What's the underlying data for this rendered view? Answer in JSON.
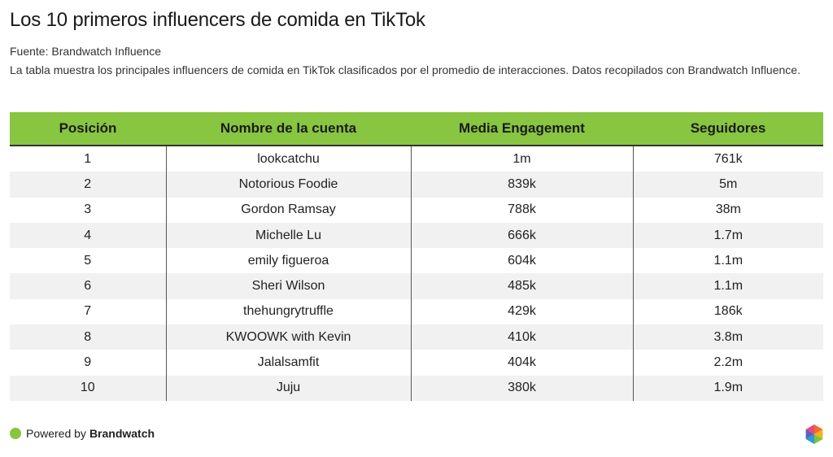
{
  "title": "Los 10 primeros influencers de comida en TikTok",
  "source": "Fuente: Brandwatch Influence",
  "description": "La tabla muestra los principales influencers de comida en TikTok clasificados por el promedio de interacciones. Datos recopilados con Brandwatch Influence.",
  "colors": {
    "header_bg": "#88c540",
    "stripe": "#f1f1f1",
    "accent": "#88c540"
  },
  "chart_data": {
    "type": "table",
    "title": "Los 10 primeros influencers de comida en TikTok",
    "columns": [
      "Posición",
      "Nombre de la cuenta",
      "Media Engagement",
      "Seguidores"
    ],
    "rows": [
      [
        "1",
        "lookcatchu",
        "1m",
        "761k"
      ],
      [
        "2",
        "Notorious Foodie",
        "839k",
        "5m"
      ],
      [
        "3",
        "Gordon Ramsay",
        "788k",
        "38m"
      ],
      [
        "4",
        "Michelle Lu",
        "666k",
        "1.7m"
      ],
      [
        "5",
        "emily figueroa",
        "604k",
        "1.1m"
      ],
      [
        "6",
        "Sheri Wilson",
        "485k",
        "1.1m"
      ],
      [
        "7",
        "thehungrytruffle",
        "429k",
        "186k"
      ],
      [
        "8",
        "KWOOWK with Kevin",
        "410k",
        "3.8m"
      ],
      [
        "9",
        "Jalalsamfit",
        "404k",
        "2.2m"
      ],
      [
        "10",
        "Juju",
        "380k",
        "1.9m"
      ]
    ]
  },
  "footer": {
    "powered_by": "Powered by",
    "brand": "Brandwatch"
  },
  "logo_icon": "brandwatch-hexagon-logo-icon"
}
